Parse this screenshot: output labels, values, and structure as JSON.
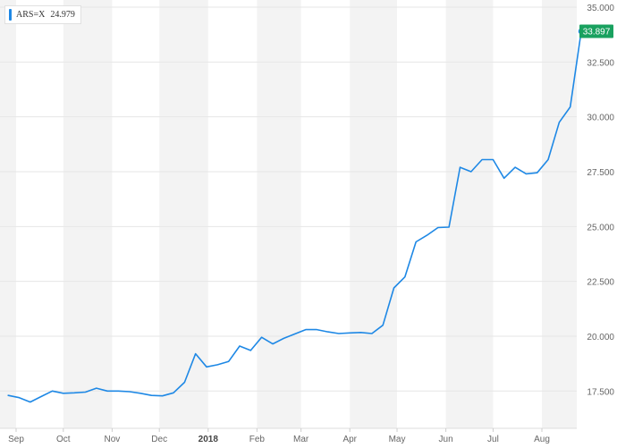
{
  "legend": {
    "symbol": "ARS=X",
    "value": "24.979"
  },
  "last_price_label": "33.897",
  "colors": {
    "line": "#1e88e5",
    "last_badge": "#19a15f",
    "band": "#f3f3f3",
    "grid": "#e6e6e6"
  },
  "chart_data": {
    "type": "line",
    "title": "",
    "xlabel": "",
    "ylabel": "",
    "ylim": [
      15.8,
      35
    ],
    "yticks": [
      "35.000",
      "32.500",
      "30.000",
      "27.500",
      "25.000",
      "22.500",
      "20.000",
      "17.500"
    ],
    "ytick_values": [
      35,
      32.5,
      30,
      27.5,
      25,
      22.5,
      20,
      17.5
    ],
    "x_axis": "time (weekly), Aug 2017 – Aug 2018",
    "xticks": [
      "Sep",
      "Oct",
      "Nov",
      "Dec",
      "2018",
      "Feb",
      "Mar",
      "Apr",
      "May",
      "Jun",
      "Jul",
      "Aug"
    ],
    "xtick_dates": [
      "2017-09-01",
      "2017-10-01",
      "2017-11-01",
      "2017-12-01",
      "2018-01-01",
      "2018-02-01",
      "2018-03-01",
      "2018-04-01",
      "2018-05-01",
      "2018-06-01",
      "2018-07-01",
      "2018-08-01"
    ],
    "grid": true,
    "legend_position": "top-left",
    "series": [
      {
        "name": "ARS=X",
        "x": [
          "2017-08-27",
          "2017-09-03",
          "2017-09-10",
          "2017-09-17",
          "2017-09-24",
          "2017-10-01",
          "2017-10-08",
          "2017-10-15",
          "2017-10-22",
          "2017-10-29",
          "2017-11-05",
          "2017-11-12",
          "2017-11-19",
          "2017-11-26",
          "2017-12-03",
          "2017-12-10",
          "2017-12-17",
          "2017-12-24",
          "2017-12-31",
          "2018-01-07",
          "2018-01-14",
          "2018-01-21",
          "2018-01-28",
          "2018-02-04",
          "2018-02-11",
          "2018-02-18",
          "2018-02-25",
          "2018-03-04",
          "2018-03-11",
          "2018-03-18",
          "2018-03-25",
          "2018-04-01",
          "2018-04-08",
          "2018-04-15",
          "2018-04-22",
          "2018-04-29",
          "2018-05-06",
          "2018-05-13",
          "2018-05-20",
          "2018-05-27",
          "2018-06-03",
          "2018-06-10",
          "2018-06-17",
          "2018-06-24",
          "2018-07-01",
          "2018-07-08",
          "2018-07-15",
          "2018-07-22",
          "2018-07-29",
          "2018-08-05",
          "2018-08-12",
          "2018-08-19",
          "2018-08-26"
        ],
        "values": [
          17.3,
          17.2,
          17.0,
          17.25,
          17.5,
          17.4,
          17.42,
          17.45,
          17.63,
          17.5,
          17.5,
          17.47,
          17.4,
          17.3,
          17.28,
          17.42,
          17.9,
          19.2,
          18.6,
          18.7,
          18.85,
          19.55,
          19.35,
          19.95,
          19.65,
          19.9,
          20.1,
          20.3,
          20.3,
          20.2,
          20.12,
          20.15,
          20.17,
          20.12,
          20.5,
          22.2,
          22.7,
          24.3,
          24.6,
          24.95,
          24.97,
          27.7,
          27.5,
          28.05,
          28.05,
          27.2,
          27.7,
          27.4,
          27.45,
          28.05,
          29.75,
          30.45,
          33.9
        ]
      }
    ]
  }
}
